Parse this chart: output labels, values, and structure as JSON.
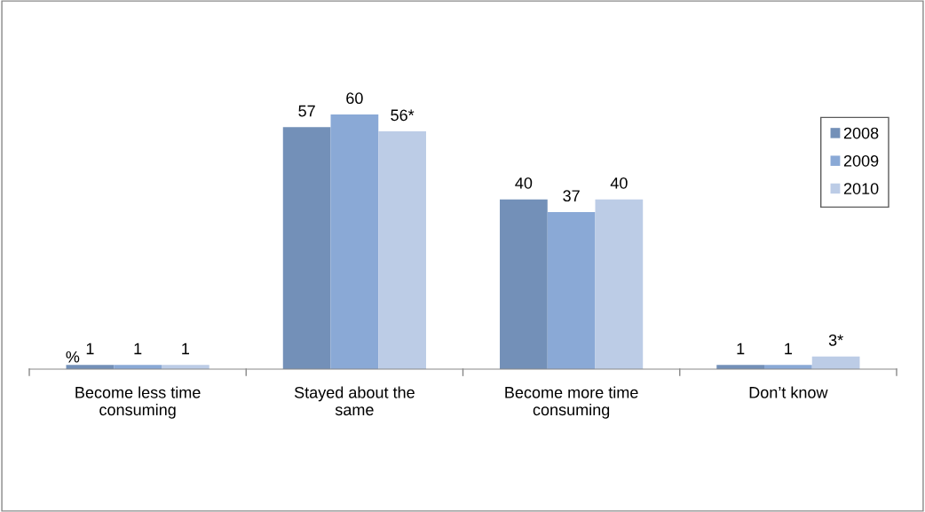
{
  "chart_data": {
    "type": "bar",
    "ylabel": "%",
    "categories": [
      "Become less time consuming",
      "Stayed about the same",
      "Become more time consuming",
      "Don’t know"
    ],
    "series": [
      {
        "name": "2008",
        "color": "#7390b8",
        "values": [
          1,
          57,
          40,
          1
        ]
      },
      {
        "name": "2009",
        "color": "#8aa9d6",
        "values": [
          1,
          60,
          37,
          1
        ]
      },
      {
        "name": "2010",
        "color": "#bccce6",
        "values": [
          1,
          56,
          40,
          3
        ],
        "value_labels": [
          "1",
          "56*",
          "40",
          "3*"
        ]
      }
    ],
    "data_labels": true,
    "legend": "right",
    "grid": false
  }
}
